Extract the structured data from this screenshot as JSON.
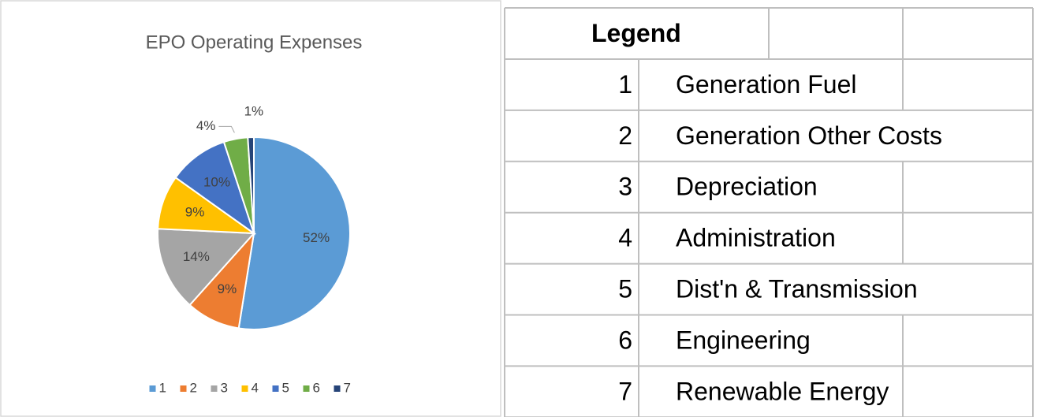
{
  "chart_data": {
    "type": "pie",
    "title": "EPO Operating Expenses",
    "categories": [
      "1",
      "2",
      "3",
      "4",
      "5",
      "6",
      "7"
    ],
    "values": [
      52,
      9,
      14,
      9,
      10,
      4,
      1
    ],
    "value_labels": [
      "52%",
      "9%",
      "14%",
      "9%",
      "10%",
      "4%",
      "1%"
    ],
    "colors": [
      "#5b9bd5",
      "#ed7d31",
      "#a5a5a5",
      "#ffc000",
      "#4472c4",
      "#70ad47",
      "#264478"
    ],
    "legend": "bottom"
  },
  "legend_table": {
    "title": "Legend",
    "rows": [
      [
        "1",
        "Generation Fuel"
      ],
      [
        "2",
        "Generation Other Costs"
      ],
      [
        "3",
        "Depreciation"
      ],
      [
        "4",
        "Administration"
      ],
      [
        "5",
        "Dist'n & Transmission"
      ],
      [
        "6",
        "Engineering"
      ],
      [
        "7",
        "Renewable Energy"
      ]
    ]
  }
}
